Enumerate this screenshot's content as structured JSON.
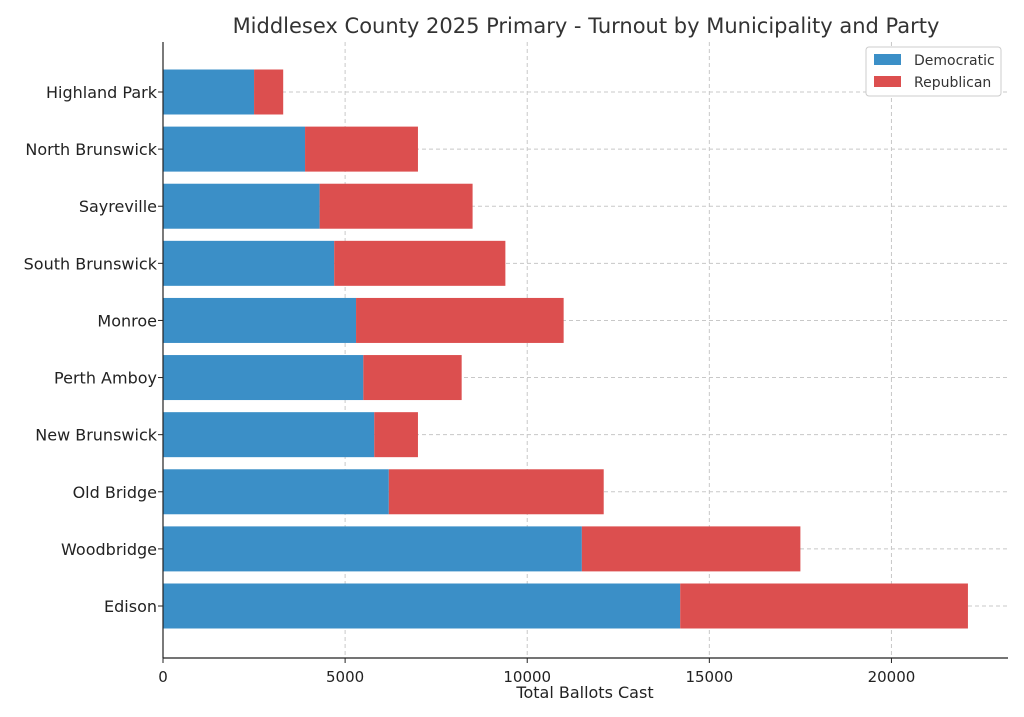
{
  "chart_data": {
    "type": "bar",
    "orientation": "horizontal",
    "stacked": true,
    "title": "Middlesex County 2025 Primary - Turnout by Municipality and Party",
    "xlabel": "Total Ballots Cast",
    "ylabel": "",
    "xlim": [
      0,
      23200
    ],
    "xticks": [
      0,
      5000,
      10000,
      15000,
      20000
    ],
    "grid": true,
    "legend_position": "top-right",
    "categories": [
      "Edison",
      "Woodbridge",
      "Old Bridge",
      "New Brunswick",
      "Perth Amboy",
      "Monroe",
      "South Brunswick",
      "Sayreville",
      "North Brunswick",
      "Highland Park"
    ],
    "series": [
      {
        "name": "Democratic",
        "color": "#3b8fc7",
        "values": [
          14200,
          11500,
          6200,
          5800,
          5500,
          5300,
          4700,
          4300,
          3900,
          2500
        ]
      },
      {
        "name": "Republican",
        "color": "#dc4f4f",
        "values": [
          7900,
          6000,
          5900,
          1200,
          2700,
          5700,
          4700,
          4200,
          3100,
          800
        ]
      }
    ]
  }
}
